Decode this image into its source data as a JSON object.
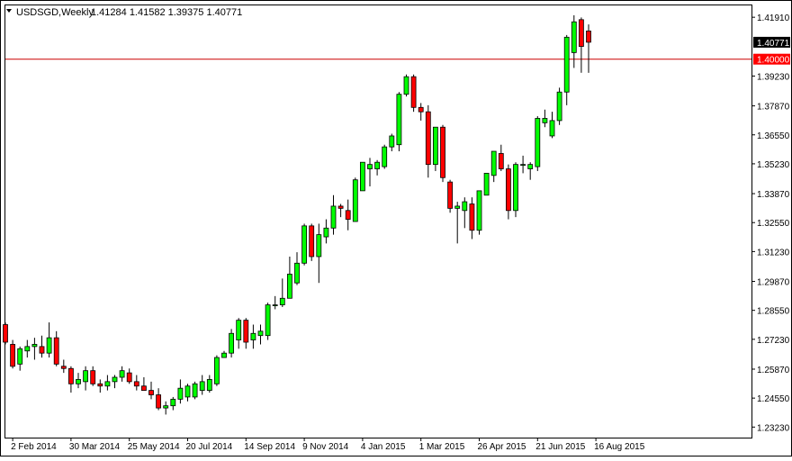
{
  "header": {
    "symbol_tf": "USDSGD,Weekly",
    "ohlc": "1.41284 1.41582 1.39375 1.40771",
    "dropdown_icon": "triangle-down-icon"
  },
  "colors": {
    "up_candle": "#00ff00",
    "down_candle": "#ff0000",
    "wick": "#000000",
    "price_line": "#cc0000",
    "current_price_bg": "#000000",
    "level_bg": "#ff0000",
    "background": "#ffffff",
    "frame": "#000000"
  },
  "chart_data": {
    "type": "candlestick",
    "title": "USDSGD,Weekly",
    "ylim": [
      1.2275,
      1.4245
    ],
    "y_ticks": [
      "1.41910",
      "1.39230",
      "1.37870",
      "1.36550",
      "1.35230",
      "1.33870",
      "1.32550",
      "1.31230",
      "1.29870",
      "1.28550",
      "1.27230",
      "1.25870",
      "1.24550",
      "1.23230"
    ],
    "y_tick_values": [
      1.4191,
      1.3923,
      1.3787,
      1.3655,
      1.3523,
      1.3387,
      1.3255,
      1.3123,
      1.2987,
      1.2855,
      1.2723,
      1.2587,
      1.2455,
      1.2323
    ],
    "x_ticks": [
      "2 Feb 2014",
      "30 Mar 2014",
      "25 May 2014",
      "20 Jul 2014",
      "14 Sep 2014",
      "9 Nov 2014",
      "4 Jan 2015",
      "1 Mar 2015",
      "26 Apr 2015",
      "21 Jun 2015",
      "16 Aug 2015"
    ],
    "x_tick_index": [
      1,
      9,
      17,
      25,
      33,
      41,
      49,
      57,
      65,
      73,
      81
    ],
    "current_price": {
      "label": "1.40771",
      "value": 1.40771
    },
    "horizontal_level": {
      "label": "1.40000",
      "value": 1.4
    },
    "candles": [
      {
        "o": 1.279,
        "h": 1.28,
        "l": 1.27,
        "c": 1.271
      },
      {
        "o": 1.27,
        "h": 1.272,
        "l": 1.259,
        "c": 1.26
      },
      {
        "o": 1.261,
        "h": 1.269,
        "l": 1.258,
        "c": 1.268
      },
      {
        "o": 1.267,
        "h": 1.272,
        "l": 1.264,
        "c": 1.269
      },
      {
        "o": 1.269,
        "h": 1.273,
        "l": 1.263,
        "c": 1.27
      },
      {
        "o": 1.269,
        "h": 1.274,
        "l": 1.264,
        "c": 1.266
      },
      {
        "o": 1.266,
        "h": 1.28,
        "l": 1.264,
        "c": 1.273
      },
      {
        "o": 1.273,
        "h": 1.276,
        "l": 1.26,
        "c": 1.261
      },
      {
        "o": 1.26,
        "h": 1.263,
        "l": 1.257,
        "c": 1.259
      },
      {
        "o": 1.259,
        "h": 1.26,
        "l": 1.248,
        "c": 1.252
      },
      {
        "o": 1.252,
        "h": 1.257,
        "l": 1.25,
        "c": 1.254
      },
      {
        "o": 1.253,
        "h": 1.26,
        "l": 1.249,
        "c": 1.258
      },
      {
        "o": 1.258,
        "h": 1.26,
        "l": 1.251,
        "c": 1.252
      },
      {
        "o": 1.252,
        "h": 1.254,
        "l": 1.248,
        "c": 1.251
      },
      {
        "o": 1.251,
        "h": 1.256,
        "l": 1.249,
        "c": 1.253
      },
      {
        "o": 1.253,
        "h": 1.256,
        "l": 1.25,
        "c": 1.255
      },
      {
        "o": 1.255,
        "h": 1.26,
        "l": 1.253,
        "c": 1.258
      },
      {
        "o": 1.257,
        "h": 1.259,
        "l": 1.252,
        "c": 1.253
      },
      {
        "o": 1.253,
        "h": 1.256,
        "l": 1.249,
        "c": 1.251
      },
      {
        "o": 1.251,
        "h": 1.255,
        "l": 1.249,
        "c": 1.249
      },
      {
        "o": 1.249,
        "h": 1.253,
        "l": 1.245,
        "c": 1.247
      },
      {
        "o": 1.247,
        "h": 1.25,
        "l": 1.24,
        "c": 1.241
      },
      {
        "o": 1.241,
        "h": 1.244,
        "l": 1.238,
        "c": 1.242
      },
      {
        "o": 1.242,
        "h": 1.246,
        "l": 1.24,
        "c": 1.245
      },
      {
        "o": 1.245,
        "h": 1.254,
        "l": 1.243,
        "c": 1.25
      },
      {
        "o": 1.246,
        "h": 1.252,
        "l": 1.244,
        "c": 1.251
      },
      {
        "o": 1.246,
        "h": 1.253,
        "l": 1.245,
        "c": 1.252
      },
      {
        "o": 1.249,
        "h": 1.256,
        "l": 1.247,
        "c": 1.253
      },
      {
        "o": 1.249,
        "h": 1.256,
        "l": 1.248,
        "c": 1.254
      },
      {
        "o": 1.252,
        "h": 1.265,
        "l": 1.251,
        "c": 1.264
      },
      {
        "o": 1.264,
        "h": 1.267,
        "l": 1.264,
        "c": 1.266
      },
      {
        "o": 1.266,
        "h": 1.277,
        "l": 1.264,
        "c": 1.275
      },
      {
        "o": 1.272,
        "h": 1.282,
        "l": 1.268,
        "c": 1.281
      },
      {
        "o": 1.281,
        "h": 1.282,
        "l": 1.268,
        "c": 1.271
      },
      {
        "o": 1.272,
        "h": 1.279,
        "l": 1.268,
        "c": 1.275
      },
      {
        "o": 1.274,
        "h": 1.279,
        "l": 1.27,
        "c": 1.276
      },
      {
        "o": 1.274,
        "h": 1.289,
        "l": 1.272,
        "c": 1.288
      },
      {
        "o": 1.288,
        "h": 1.292,
        "l": 1.286,
        "c": 1.288
      },
      {
        "o": 1.288,
        "h": 1.3,
        "l": 1.287,
        "c": 1.291
      },
      {
        "o": 1.291,
        "h": 1.31,
        "l": 1.291,
        "c": 1.302
      },
      {
        "o": 1.298,
        "h": 1.312,
        "l": 1.297,
        "c": 1.307
      },
      {
        "o": 1.307,
        "h": 1.325,
        "l": 1.306,
        "c": 1.324
      },
      {
        "o": 1.324,
        "h": 1.325,
        "l": 1.308,
        "c": 1.31
      },
      {
        "o": 1.31,
        "h": 1.325,
        "l": 1.298,
        "c": 1.32
      },
      {
        "o": 1.319,
        "h": 1.327,
        "l": 1.316,
        "c": 1.323
      },
      {
        "o": 1.323,
        "h": 1.338,
        "l": 1.32,
        "c": 1.333
      },
      {
        "o": 1.333,
        "h": 1.334,
        "l": 1.328,
        "c": 1.332
      },
      {
        "o": 1.331,
        "h": 1.336,
        "l": 1.322,
        "c": 1.327
      },
      {
        "o": 1.326,
        "h": 1.346,
        "l": 1.326,
        "c": 1.345
      },
      {
        "o": 1.34,
        "h": 1.353,
        "l": 1.34,
        "c": 1.353
      },
      {
        "o": 1.35,
        "h": 1.355,
        "l": 1.342,
        "c": 1.352
      },
      {
        "o": 1.35,
        "h": 1.354,
        "l": 1.347,
        "c": 1.353
      },
      {
        "o": 1.351,
        "h": 1.361,
        "l": 1.35,
        "c": 1.36
      },
      {
        "o": 1.36,
        "h": 1.366,
        "l": 1.358,
        "c": 1.365
      },
      {
        "o": 1.361,
        "h": 1.385,
        "l": 1.358,
        "c": 1.384
      },
      {
        "o": 1.384,
        "h": 1.393,
        "l": 1.383,
        "c": 1.392
      },
      {
        "o": 1.392,
        "h": 1.393,
        "l": 1.376,
        "c": 1.378
      },
      {
        "o": 1.378,
        "h": 1.38,
        "l": 1.372,
        "c": 1.376
      },
      {
        "o": 1.376,
        "h": 1.379,
        "l": 1.346,
        "c": 1.352
      },
      {
        "o": 1.352,
        "h": 1.369,
        "l": 1.349,
        "c": 1.369
      },
      {
        "o": 1.369,
        "h": 1.37,
        "l": 1.344,
        "c": 1.346
      },
      {
        "o": 1.344,
        "h": 1.345,
        "l": 1.33,
        "c": 1.332
      },
      {
        "o": 1.332,
        "h": 1.335,
        "l": 1.316,
        "c": 1.333
      },
      {
        "o": 1.331,
        "h": 1.337,
        "l": 1.323,
        "c": 1.335
      },
      {
        "o": 1.334,
        "h": 1.337,
        "l": 1.318,
        "c": 1.322
      },
      {
        "o": 1.322,
        "h": 1.34,
        "l": 1.32,
        "c": 1.34
      },
      {
        "o": 1.338,
        "h": 1.348,
        "l": 1.338,
        "c": 1.348
      },
      {
        "o": 1.347,
        "h": 1.358,
        "l": 1.344,
        "c": 1.358
      },
      {
        "o": 1.357,
        "h": 1.361,
        "l": 1.349,
        "c": 1.35
      },
      {
        "o": 1.35,
        "h": 1.352,
        "l": 1.327,
        "c": 1.331
      },
      {
        "o": 1.331,
        "h": 1.353,
        "l": 1.328,
        "c": 1.352
      },
      {
        "o": 1.352,
        "h": 1.356,
        "l": 1.348,
        "c": 1.352
      },
      {
        "o": 1.35,
        "h": 1.353,
        "l": 1.345,
        "c": 1.352
      },
      {
        "o": 1.351,
        "h": 1.374,
        "l": 1.349,
        "c": 1.373
      },
      {
        "o": 1.371,
        "h": 1.377,
        "l": 1.369,
        "c": 1.373
      },
      {
        "o": 1.365,
        "h": 1.376,
        "l": 1.364,
        "c": 1.372
      },
      {
        "o": 1.372,
        "h": 1.387,
        "l": 1.37,
        "c": 1.385
      },
      {
        "o": 1.385,
        "h": 1.411,
        "l": 1.379,
        "c": 1.41
      },
      {
        "o": 1.403,
        "h": 1.42,
        "l": 1.396,
        "c": 1.417
      },
      {
        "o": 1.418,
        "h": 1.419,
        "l": 1.3938,
        "c": 1.4058
      },
      {
        "o": 1.41284,
        "h": 1.41582,
        "l": 1.39375,
        "c": 1.40771
      }
    ]
  }
}
